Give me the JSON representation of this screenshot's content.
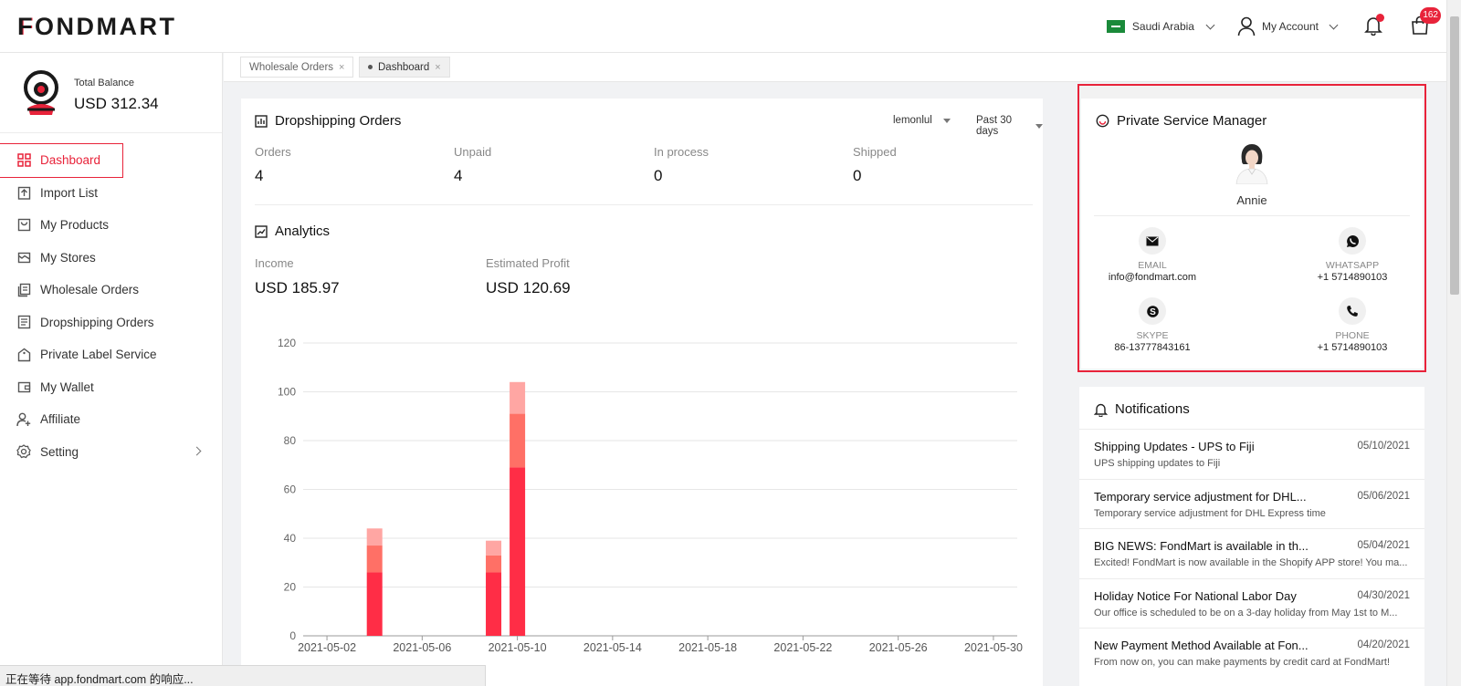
{
  "header": {
    "logo_text": "FONDMART",
    "country": "Saudi Arabia",
    "account_label": "My Account",
    "cart_count": "162"
  },
  "sidebar": {
    "balance_label": "Total Balance",
    "balance_value": "USD 312.34",
    "items": [
      {
        "label": "Dashboard",
        "icon": "dashboard-icon"
      },
      {
        "label": "Import List",
        "icon": "import-icon"
      },
      {
        "label": "My Products",
        "icon": "products-icon"
      },
      {
        "label": "My Stores",
        "icon": "store-icon"
      },
      {
        "label": "Wholesale Orders",
        "icon": "wholesale-icon"
      },
      {
        "label": "Dropshipping Orders",
        "icon": "orders-icon"
      },
      {
        "label": "Private Label Service",
        "icon": "tag-icon"
      },
      {
        "label": "My Wallet",
        "icon": "wallet-icon"
      },
      {
        "label": "Affiliate",
        "icon": "affiliate-icon"
      },
      {
        "label": "Setting",
        "icon": "gear-icon"
      }
    ]
  },
  "tabs": [
    {
      "label": "Wholesale Orders"
    },
    {
      "label": "Dashboard"
    }
  ],
  "orders": {
    "title": "Dropshipping Orders",
    "store_select": "lemonlul",
    "range_select": "Past 30 days",
    "stats": [
      {
        "label": "Orders",
        "value": "4"
      },
      {
        "label": "Unpaid",
        "value": "4"
      },
      {
        "label": "In process",
        "value": "0"
      },
      {
        "label": "Shipped",
        "value": "0"
      }
    ]
  },
  "analytics": {
    "title": "Analytics",
    "income_label": "Income",
    "income_value": "USD 185.97",
    "profit_label": "Estimated Profit",
    "profit_value": "USD 120.69"
  },
  "chart_data": {
    "type": "bar",
    "stacked": true,
    "title": "",
    "xlabel": "",
    "ylabel": "",
    "ylim": [
      0,
      120
    ],
    "yticks": [
      0,
      20,
      40,
      60,
      80,
      100,
      120
    ],
    "x_start": "2021-05-01",
    "x_end": "2021-05-31",
    "xticks": [
      "2021-05-02",
      "2021-05-06",
      "2021-05-10",
      "2021-05-14",
      "2021-05-18",
      "2021-05-22",
      "2021-05-26",
      "2021-05-30"
    ],
    "bars": [
      {
        "date": "2021-05-04",
        "segments": [
          26,
          11,
          7
        ]
      },
      {
        "date": "2021-05-09",
        "segments": [
          26,
          7,
          6
        ]
      },
      {
        "date": "2021-05-10",
        "segments": [
          69,
          22,
          13
        ]
      }
    ],
    "segment_colors": [
      "#ff2d46",
      "#ff7066",
      "#ffa6a3"
    ]
  },
  "manager": {
    "title": "Private Service Manager",
    "name": "Annie",
    "contacts": [
      {
        "label": "EMAIL",
        "value": "info@fondmart.com",
        "icon": "mail-icon"
      },
      {
        "label": "WHATSAPP",
        "value": "+1 5714890103",
        "icon": "whatsapp-icon"
      },
      {
        "label": "SKYPE",
        "value": "86-13777843161",
        "icon": "skype-icon"
      },
      {
        "label": "PHONE",
        "value": "+1 5714890103",
        "icon": "phone-icon"
      }
    ]
  },
  "notifications": {
    "title": "Notifications",
    "items": [
      {
        "title": "Shipping Updates - UPS to Fiji",
        "date": "05/10/2021",
        "desc": "UPS shipping updates to Fiji"
      },
      {
        "title": "Temporary service adjustment for DHL...",
        "date": "05/06/2021",
        "desc": "Temporary service adjustment for DHL Express time"
      },
      {
        "title": "BIG NEWS: FondMart is available in th...",
        "date": "05/04/2021",
        "desc": "Excited! FondMart is now available in the Shopify APP store! You ma..."
      },
      {
        "title": "Holiday Notice For National Labor Day",
        "date": "04/30/2021",
        "desc": "Our office is scheduled to be on a 3-day holiday from May 1st to M..."
      },
      {
        "title": "New Payment Method Available at Fon...",
        "date": "04/20/2021",
        "desc": "From now on, you can make payments by credit card at FondMart!"
      }
    ]
  },
  "statusbar": {
    "text": "正在等待 app.fondmart.com 的响应..."
  },
  "colors": {
    "accent": "#e8233a"
  }
}
